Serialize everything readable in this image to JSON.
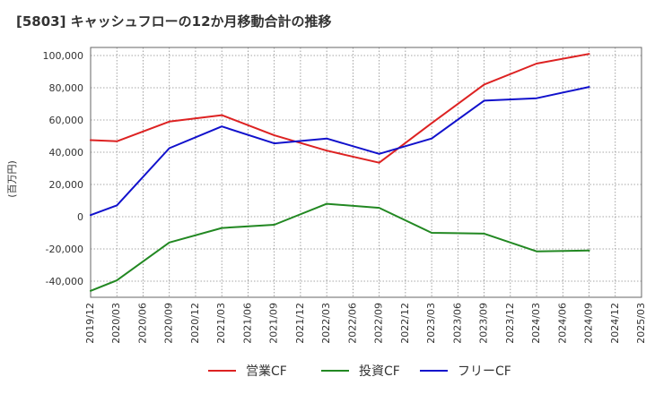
{
  "chart_data": {
    "type": "line",
    "title": "[5803]  キャッシュフローの12か月移動合計の推移",
    "xlabel": "",
    "ylabel": "(百万円)",
    "x_ticks": [
      "2019/12",
      "2020/03",
      "2020/06",
      "2020/09",
      "2020/12",
      "2021/03",
      "2021/06",
      "2021/09",
      "2021/12",
      "2022/03",
      "2022/06",
      "2022/09",
      "2022/12",
      "2023/03",
      "2023/06",
      "2023/09",
      "2023/12",
      "2024/03",
      "2024/06",
      "2024/09",
      "2024/12",
      "2025/03"
    ],
    "ylim": [
      -50000,
      105000
    ],
    "y_ticks": [
      -40000,
      -20000,
      0,
      20000,
      40000,
      60000,
      80000,
      100000
    ],
    "y_tick_labels": [
      "-40,000",
      "-20,000",
      "0",
      "20,000",
      "40,000",
      "60,000",
      "80,000",
      "100,000"
    ],
    "grid": true,
    "legend_position": "bottom",
    "series": [
      {
        "name": "営業CF",
        "color": "#dd2222",
        "points": [
          {
            "x": "2019/12",
            "y": 47500
          },
          {
            "x": "2020/03",
            "y": 46800
          },
          {
            "x": "2020/09",
            "y": 59000
          },
          {
            "x": "2021/03",
            "y": 63000
          },
          {
            "x": "2021/09",
            "y": 50500
          },
          {
            "x": "2022/03",
            "y": 41000
          },
          {
            "x": "2022/09",
            "y": 33500
          },
          {
            "x": "2023/03",
            "y": 58000
          },
          {
            "x": "2023/09",
            "y": 82000
          },
          {
            "x": "2024/03",
            "y": 95000
          },
          {
            "x": "2024/09",
            "y": 101000
          }
        ]
      },
      {
        "name": "投資CF",
        "color": "#228822",
        "points": [
          {
            "x": "2019/12",
            "y": -46000
          },
          {
            "x": "2020/03",
            "y": -39500
          },
          {
            "x": "2020/09",
            "y": -16000
          },
          {
            "x": "2021/03",
            "y": -7000
          },
          {
            "x": "2021/09",
            "y": -5000
          },
          {
            "x": "2022/03",
            "y": 8000
          },
          {
            "x": "2022/09",
            "y": 5500
          },
          {
            "x": "2023/03",
            "y": -10000
          },
          {
            "x": "2023/09",
            "y": -10500
          },
          {
            "x": "2024/03",
            "y": -21500
          },
          {
            "x": "2024/09",
            "y": -21000
          }
        ]
      },
      {
        "name": "フリーCF",
        "color": "#1111cc",
        "points": [
          {
            "x": "2019/12",
            "y": 1000
          },
          {
            "x": "2020/03",
            "y": 7000
          },
          {
            "x": "2020/09",
            "y": 42500
          },
          {
            "x": "2021/03",
            "y": 56000
          },
          {
            "x": "2021/09",
            "y": 45500
          },
          {
            "x": "2022/03",
            "y": 48500
          },
          {
            "x": "2022/09",
            "y": 39000
          },
          {
            "x": "2023/03",
            "y": 48500
          },
          {
            "x": "2023/09",
            "y": 72000
          },
          {
            "x": "2024/03",
            "y": 73500
          },
          {
            "x": "2024/09",
            "y": 80500
          }
        ]
      }
    ]
  }
}
